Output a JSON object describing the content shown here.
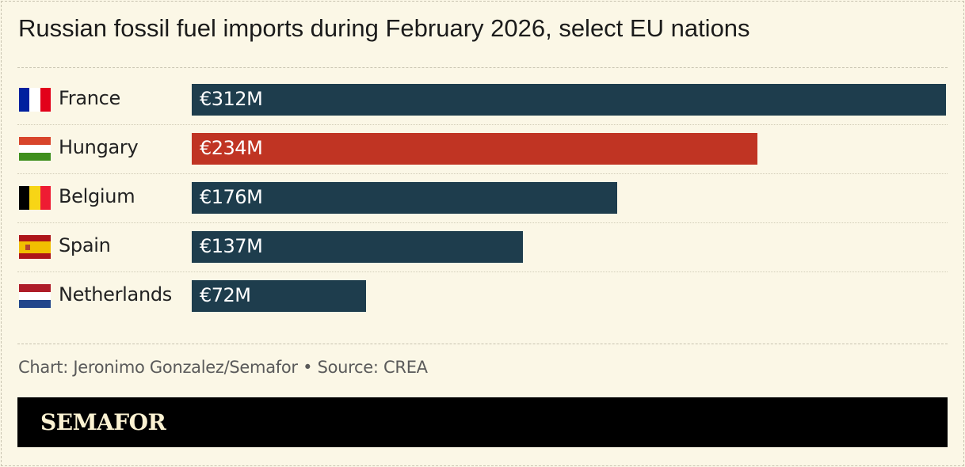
{
  "chart_data": {
    "type": "bar",
    "orientation": "horizontal",
    "title": "Russian fossil fuel imports during February 2026, select EU nations",
    "categories": [
      "France",
      "Hungary",
      "Belgium",
      "Spain",
      "Netherlands"
    ],
    "values": [
      312,
      234,
      176,
      137,
      72
    ],
    "data_labels": [
      "€312M",
      "€234M",
      "€176M",
      "€137M",
      "€72M"
    ],
    "unit": "€M",
    "bar_colors": [
      "#1e3d4d",
      "#c03423",
      "#1e3d4d",
      "#1e3d4d",
      "#1e3d4d"
    ],
    "flags": [
      "france-flag",
      "hungary-flag",
      "belgium-flag",
      "spain-flag",
      "netherlands-flag"
    ],
    "xlim": [
      0,
      312
    ],
    "grid": false,
    "legend": "none"
  },
  "credit": "Chart: Jeronimo Gonzalez/Semafor • Source: CREA",
  "logo": "SEMAFOR",
  "colors": {
    "background": "#fbf7e6",
    "bar": "#1e3d4d",
    "highlight": "#c03423"
  }
}
